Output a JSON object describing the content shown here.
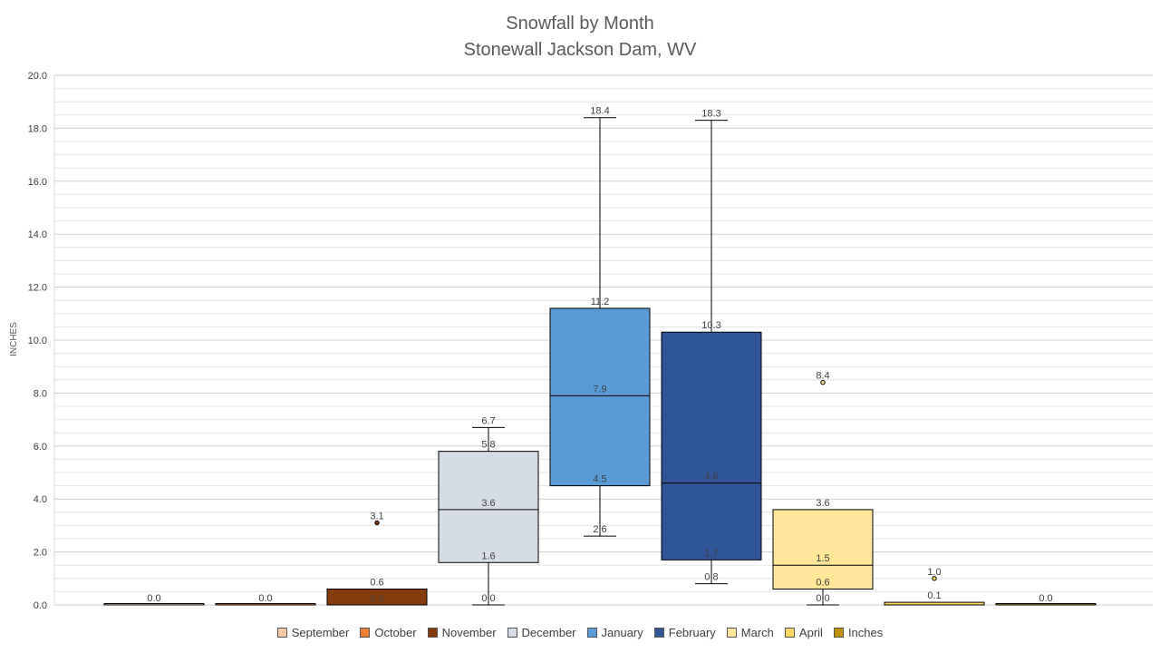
{
  "chart_data": {
    "type": "box",
    "title_lines": [
      "Snowfall by Month",
      "Stonewall Jackson Dam, WV"
    ],
    "ylabel": "INCHES",
    "ylim": [
      0,
      20
    ],
    "y_ticks": [
      "0.0",
      "2.0",
      "4.0",
      "6.0",
      "8.0",
      "10.0",
      "12.0",
      "14.0",
      "16.0",
      "18.0",
      "20.0"
    ],
    "grid": true,
    "legend_position": "bottom",
    "series": [
      {
        "name": "September",
        "color": "#f8cba6",
        "min": 0.0,
        "q1": 0.0,
        "median": 0.0,
        "q3": 0.0,
        "max": 0.0,
        "outliers": []
      },
      {
        "name": "October",
        "color": "#ed7d31",
        "min": 0.0,
        "q1": 0.0,
        "median": 0.0,
        "q3": 0.0,
        "max": 0.0,
        "outliers": []
      },
      {
        "name": "November",
        "color": "#843c0c",
        "min": 0.0,
        "q1": 0.0,
        "median": 0.0,
        "q3": 0.6,
        "max": 0.6,
        "outliers": [
          3.1
        ]
      },
      {
        "name": "December",
        "color": "#d6dce5",
        "min": 0.0,
        "q1": 1.6,
        "median": 3.6,
        "q3": 5.8,
        "max": 6.7,
        "outliers": []
      },
      {
        "name": "January",
        "color": "#5b9bd5",
        "min": 2.6,
        "q1": 4.5,
        "median": 7.9,
        "q3": 11.2,
        "max": 18.4,
        "outliers": []
      },
      {
        "name": "February",
        "color": "#2f5597",
        "min": 0.8,
        "q1": 1.7,
        "median": 4.6,
        "q3": 10.3,
        "max": 18.3,
        "outliers": []
      },
      {
        "name": "March",
        "color": "#ffe699",
        "min": 0.0,
        "q1": 0.6,
        "median": 1.5,
        "q3": 3.6,
        "max": 3.6,
        "outliers": [
          8.4
        ]
      },
      {
        "name": "April",
        "color": "#ffd966",
        "min": 0.0,
        "q1": 0.0,
        "median": 0.0,
        "q3": 0.1,
        "max": 0.1,
        "outliers": [
          1.0
        ]
      },
      {
        "name": "Inches",
        "color": "#bf9000",
        "min": 0.0,
        "q1": 0.0,
        "median": 0.0,
        "q3": 0.0,
        "max": 0.0,
        "outliers": []
      }
    ],
    "data_labels": [
      {
        "series": "September",
        "text": "0.0",
        "value": 0.0
      },
      {
        "series": "October",
        "text": "0.0",
        "value": 0.0
      },
      {
        "series": "November",
        "text": "0.0",
        "value": 0.0
      },
      {
        "series": "November",
        "text": "0.6",
        "value": 0.6
      },
      {
        "series": "November",
        "text": "3.1",
        "value": 3.1
      },
      {
        "series": "December",
        "text": "0.0",
        "value": 0.0
      },
      {
        "series": "December",
        "text": "1.6",
        "value": 1.6
      },
      {
        "series": "December",
        "text": "3.6",
        "value": 3.6
      },
      {
        "series": "December",
        "text": "5.8",
        "value": 5.8
      },
      {
        "series": "December",
        "text": "6.7",
        "value": 6.7
      },
      {
        "series": "January",
        "text": "2.6",
        "value": 2.6
      },
      {
        "series": "January",
        "text": "4.5",
        "value": 4.5
      },
      {
        "series": "January",
        "text": "7.9",
        "value": 7.9
      },
      {
        "series": "January",
        "text": "11.2",
        "value": 11.2
      },
      {
        "series": "January",
        "text": "18.4",
        "value": 18.4
      },
      {
        "series": "February",
        "text": "0.8",
        "value": 0.8
      },
      {
        "series": "February",
        "text": "1.7",
        "value": 1.7
      },
      {
        "series": "February",
        "text": "4.6",
        "value": 4.6
      },
      {
        "series": "February",
        "text": "10.3",
        "value": 10.3
      },
      {
        "series": "February",
        "text": "18.3",
        "value": 18.3
      },
      {
        "series": "March",
        "text": "0.0",
        "value": 0.0
      },
      {
        "series": "March",
        "text": "0.6",
        "value": 0.6
      },
      {
        "series": "March",
        "text": "1.5",
        "value": 1.5
      },
      {
        "series": "March",
        "text": "3.6",
        "value": 3.6
      },
      {
        "series": "March",
        "text": "8.4",
        "value": 8.4
      },
      {
        "series": "April",
        "text": "0.1",
        "value": 0.1
      },
      {
        "series": "April",
        "text": "1.0",
        "value": 1.0
      },
      {
        "series": "Inches",
        "text": "0.0",
        "value": 0.0
      }
    ]
  }
}
